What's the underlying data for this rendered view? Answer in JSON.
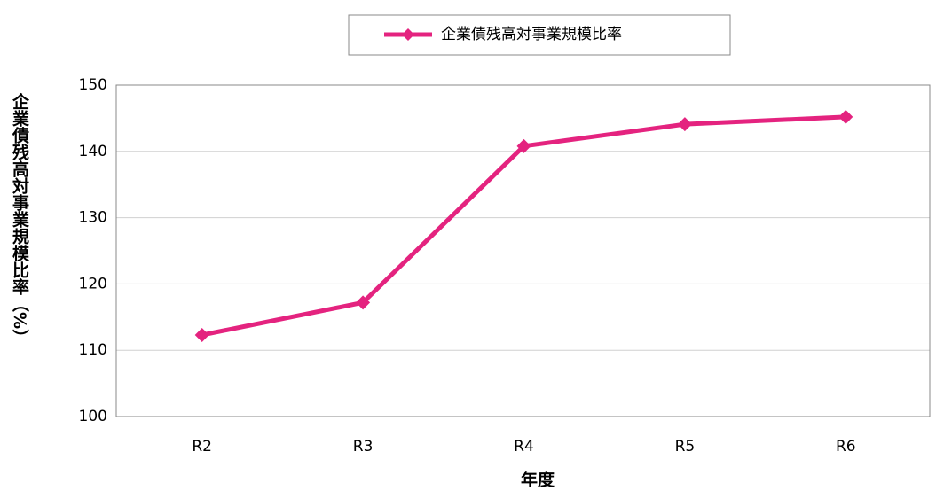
{
  "chart_data": {
    "type": "line",
    "x_label": "年度",
    "y_label": "企業債残高対事業規模比率（%）",
    "categories": [
      "R2",
      "R3",
      "R4",
      "R5",
      "R6"
    ],
    "series": [
      {
        "name": "企業債残高対事業規模比率",
        "color": "#e4237f",
        "values": [
          112.3,
          117.2,
          140.8,
          144.1,
          145.2
        ]
      }
    ],
    "ylim": [
      100,
      150
    ],
    "yticks": [
      100,
      110,
      120,
      130,
      140,
      150
    ],
    "grid": true,
    "legend": "top"
  }
}
